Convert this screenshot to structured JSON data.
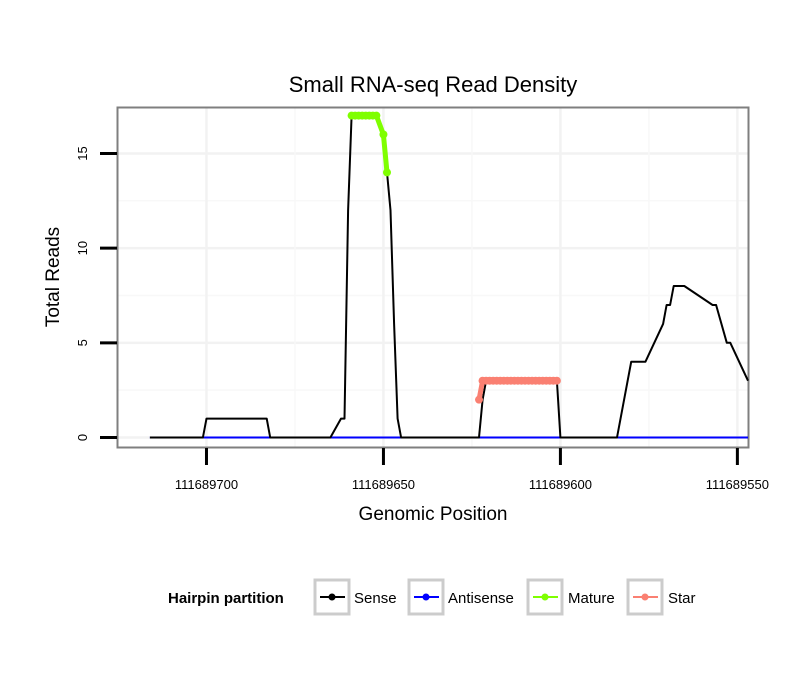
{
  "chart_data": {
    "type": "line",
    "title": "Small RNA-seq Read Density",
    "xlabel": "Genomic Position",
    "ylabel": "Total Reads",
    "xlim": [
      111689725,
      111689547
    ],
    "x_reversed": true,
    "ylim": [
      -0.5,
      17.4
    ],
    "x_ticks": [
      111689700,
      111689650,
      111689600,
      111689550
    ],
    "x_tick_labels": [
      "111689700",
      "111689650",
      "111689600",
      "111689550"
    ],
    "y_ticks": [
      0,
      5,
      10,
      15
    ],
    "y_tick_labels": [
      "0",
      "5",
      "10",
      "15"
    ],
    "grid": true,
    "legend": {
      "title": "Hairpin partition",
      "position": "bottom",
      "entries": [
        {
          "label": "Sense",
          "color": "#000000"
        },
        {
          "label": "Antisense",
          "color": "#0000ff"
        },
        {
          "label": "Mature",
          "color": "#7fff00"
        },
        {
          "label": "Star",
          "color": "#fa8072"
        }
      ]
    },
    "series": [
      {
        "name": "Sense",
        "color": "#000000",
        "markers": false,
        "x": [
          111689716,
          111689701,
          111689700,
          111689683,
          111689682,
          111689665,
          111689662,
          111689661,
          111689660,
          111689659,
          111689658,
          111689657,
          111689652,
          111689650,
          111689649,
          111689648,
          111689647,
          111689646,
          111689645,
          111689623,
          111689622,
          111689621,
          111689601,
          111689600,
          111689584,
          111689580,
          111689576,
          111689571,
          111689570,
          111689569,
          111689568,
          111689566,
          111689565,
          111689557,
          111689556,
          111689553,
          111689552,
          111689547
        ],
        "values": [
          0,
          0,
          1,
          1,
          0,
          0,
          1,
          1,
          12,
          17,
          17,
          17,
          17,
          16,
          14,
          12,
          6,
          1,
          0,
          0,
          2,
          3,
          3,
          0,
          0,
          4,
          4,
          6,
          7,
          7,
          8,
          8,
          8,
          7,
          7,
          5,
          5,
          3
        ]
      },
      {
        "name": "Antisense",
        "color": "#0000ff",
        "markers": false,
        "x": [
          111689716,
          111689547
        ],
        "values": [
          0,
          0
        ]
      },
      {
        "name": "Mature",
        "color": "#7fff00",
        "markers": true,
        "x": [
          111689659,
          111689658,
          111689657,
          111689656,
          111689655,
          111689654,
          111689653,
          111689652,
          111689650,
          111689649
        ],
        "values": [
          17,
          17,
          17,
          17,
          17,
          17,
          17,
          17,
          16,
          14
        ]
      },
      {
        "name": "Star",
        "color": "#fa8072",
        "markers": true,
        "x": [
          111689623,
          111689622,
          111689621,
          111689620,
          111689619,
          111689618,
          111689617,
          111689616,
          111689615,
          111689614,
          111689613,
          111689612,
          111689611,
          111689610,
          111689609,
          111689608,
          111689607,
          111689606,
          111689605,
          111689604,
          111689603,
          111689602,
          111689601
        ],
        "values": [
          2,
          3,
          3,
          3,
          3,
          3,
          3,
          3,
          3,
          3,
          3,
          3,
          3,
          3,
          3,
          3,
          3,
          3,
          3,
          3,
          3,
          3,
          3
        ]
      }
    ]
  }
}
